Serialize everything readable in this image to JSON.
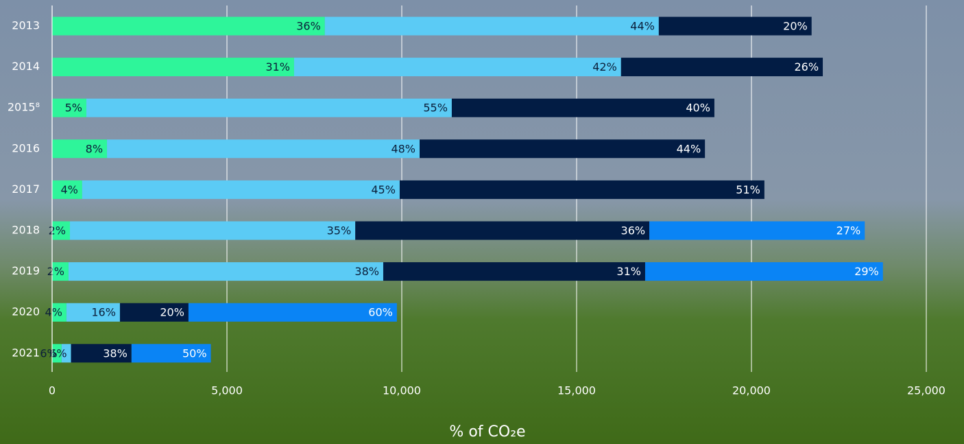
{
  "chart_data": {
    "type": "stacked_barh",
    "categories": [
      "2013",
      "2014",
      "2015⁸",
      "2016",
      "2017",
      "2018",
      "2019",
      "2020",
      "2021"
    ],
    "series": [
      {
        "color": "#2ef59a",
        "text_color": "#0b1f3a",
        "values": [
          7800,
          6920,
          980,
          1570,
          860,
          510,
          470,
          410,
          270
        ],
        "shares": [
          36,
          31,
          5,
          8,
          4,
          2,
          2,
          4,
          6
        ],
        "share_labels": [
          "36%",
          "31%",
          "5%",
          "8%",
          "4%",
          "2%",
          "2%",
          "4%",
          "6%"
        ]
      },
      {
        "color": "#5bcbf5",
        "text_color": "#0b1f3a",
        "values": [
          9550,
          9350,
          10450,
          8940,
          9080,
          8160,
          9000,
          1530,
          270
        ],
        "shares": [
          44,
          42,
          55,
          48,
          45,
          35,
          38,
          16,
          6
        ],
        "share_labels": [
          "44%",
          "42%",
          "55%",
          "48%",
          "45%",
          "35%",
          "38%",
          "16%",
          "6%"
        ]
      },
      {
        "color": "#021c44",
        "text_color": "#ffffff",
        "values": [
          4370,
          5770,
          7510,
          8160,
          10430,
          8410,
          7490,
          1960,
          1730
        ],
        "shares": [
          20,
          26,
          40,
          44,
          51,
          36,
          31,
          20,
          38
        ],
        "share_labels": [
          "20%",
          "26%",
          "40%",
          "44%",
          "51%",
          "36%",
          "31%",
          "20%",
          "38%"
        ]
      },
      {
        "color": "#0a84f5",
        "text_color": "#ffffff",
        "values": [
          null,
          null,
          null,
          null,
          null,
          6160,
          6800,
          5960,
          2270
        ],
        "shares": [
          null,
          null,
          null,
          null,
          null,
          27,
          29,
          60,
          50
        ],
        "share_labels": [
          null,
          null,
          null,
          null,
          null,
          "27%",
          "29%",
          "60%",
          "50%"
        ]
      }
    ],
    "xlabel": "% of CO₂e",
    "xlim": [
      0,
      25000
    ],
    "xticks": [
      0,
      {
        "value": 5000,
        "label": "5,000"
      },
      {
        "value": 10000,
        "label": "10,000"
      },
      {
        "value": 15000,
        "label": "15,000"
      },
      {
        "value": 20000,
        "label": "20,000"
      },
      {
        "value": 25000,
        "label": "25,000"
      }
    ],
    "grid": true
  }
}
